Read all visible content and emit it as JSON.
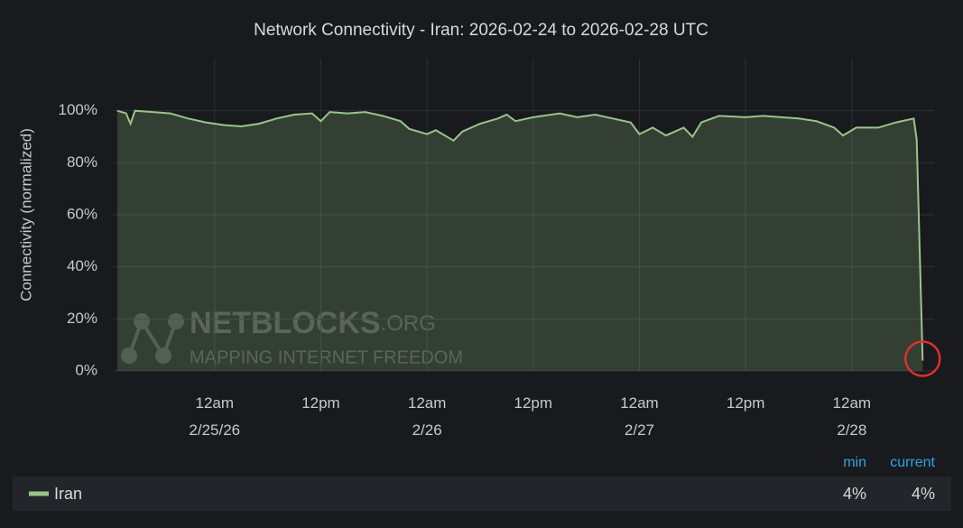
{
  "chart_data": {
    "type": "area",
    "title": "Network Connectivity - Iran: 2026-02-24 to 2026-02-28 UTC",
    "y_label": "Connectivity (normalized)",
    "xlim": [
      "2026-02-24T12:36",
      "2026-02-28T09:18"
    ],
    "xticks": [
      {
        "value": "2026-02-25T00:00",
        "label": "12am\n2/25/26"
      },
      {
        "value": "2026-02-25T12:00",
        "label": "12pm"
      },
      {
        "value": "2026-02-26T00:00",
        "label": "12am\n2/26"
      },
      {
        "value": "2026-02-26T12:00",
        "label": "12pm"
      },
      {
        "value": "2026-02-27T00:00",
        "label": "12am\n2/27"
      },
      {
        "value": "2026-02-27T12:00",
        "label": "12pm"
      },
      {
        "value": "2026-02-28T00:00",
        "label": "12am\n2/28"
      }
    ],
    "ylim": [
      0,
      120
    ],
    "yticks": [
      {
        "value": 0,
        "label": "0%"
      },
      {
        "value": 20,
        "label": "20%"
      },
      {
        "value": 40,
        "label": "40%"
      },
      {
        "value": 60,
        "label": "60%"
      },
      {
        "value": 80,
        "label": "80%"
      },
      {
        "value": 100,
        "label": "100%"
      }
    ],
    "grid": true,
    "x": [
      "2026-02-24T13:00",
      "2026-02-24T14:00",
      "2026-02-24T14:30",
      "2026-02-24T15:00",
      "2026-02-24T17:00",
      "2026-02-24T19:00",
      "2026-02-24T21:00",
      "2026-02-24T23:00",
      "2026-02-25T01:00",
      "2026-02-25T03:00",
      "2026-02-25T05:00",
      "2026-02-25T07:00",
      "2026-02-25T09:00",
      "2026-02-25T11:00",
      "2026-02-25T12:00",
      "2026-02-25T13:00",
      "2026-02-25T15:00",
      "2026-02-25T17:00",
      "2026-02-25T19:00",
      "2026-02-25T21:00",
      "2026-02-25T22:00",
      "2026-02-26T00:00",
      "2026-02-26T01:00",
      "2026-02-26T03:00",
      "2026-02-26T04:00",
      "2026-02-26T06:00",
      "2026-02-26T08:00",
      "2026-02-26T09:00",
      "2026-02-26T10:00",
      "2026-02-26T12:00",
      "2026-02-26T15:00",
      "2026-02-26T17:00",
      "2026-02-26T19:00",
      "2026-02-26T21:00",
      "2026-02-26T23:00",
      "2026-02-27T00:00",
      "2026-02-27T01:30",
      "2026-02-27T03:00",
      "2026-02-27T05:00",
      "2026-02-27T06:00",
      "2026-02-27T07:00",
      "2026-02-27T09:00",
      "2026-02-27T12:00",
      "2026-02-27T14:00",
      "2026-02-27T16:00",
      "2026-02-27T18:00",
      "2026-02-27T20:00",
      "2026-02-27T22:00",
      "2026-02-27T23:00",
      "2026-02-28T00:30",
      "2026-02-28T03:00",
      "2026-02-28T05:00",
      "2026-02-28T07:00",
      "2026-02-28T07:20",
      "2026-02-28T08:00"
    ],
    "series": [
      {
        "name": "Iran",
        "color": "#9ac48a",
        "values": [
          100,
          99,
          95,
          100,
          99.5,
          99,
          97,
          95.5,
          94.5,
          94,
          95,
          97,
          98.5,
          99,
          96,
          99.5,
          99,
          99.5,
          98,
          96,
          93,
          91,
          92.5,
          88.5,
          92,
          95,
          97,
          98.5,
          96,
          97.5,
          99,
          97.5,
          98.5,
          97,
          95.5,
          91,
          93.5,
          90.5,
          93.5,
          90,
          95.5,
          98,
          97.5,
          98,
          97.5,
          97,
          96,
          93.5,
          90.5,
          93.5,
          93.5,
          95.5,
          97,
          89,
          4
        ]
      }
    ],
    "legend_columns": [
      "min",
      "current"
    ],
    "legend_values": [
      4,
      4
    ],
    "legend_value_labels": [
      "4%",
      "4%"
    ],
    "watermark": {
      "name": "NETBLOCKS",
      "suffix": ".ORG",
      "tagline": "MAPPING INTERNET FREEDOM"
    }
  }
}
